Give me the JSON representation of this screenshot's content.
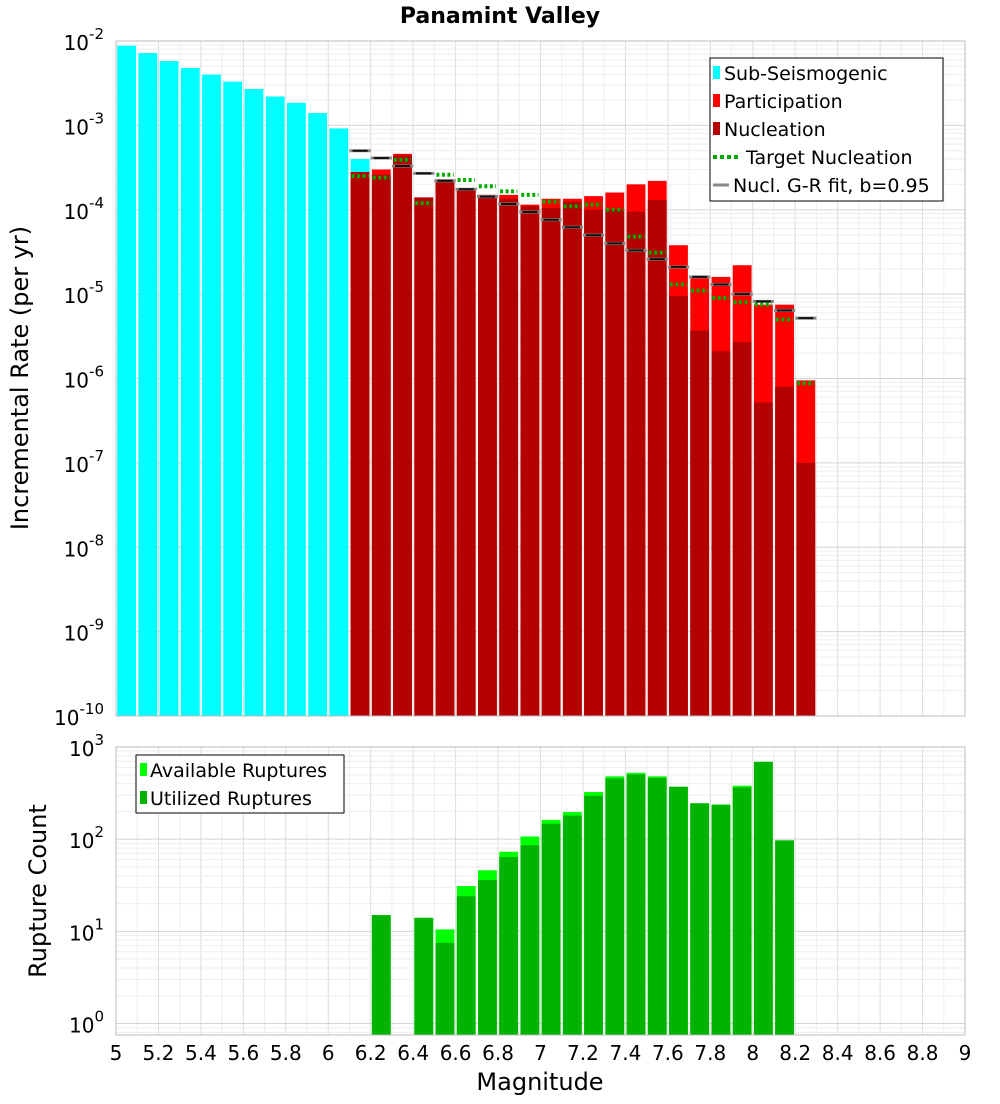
{
  "chart_data": [
    {
      "type": "bar",
      "id": "top",
      "title": "Panamint Valley",
      "ylabel": "Incremental Rate (per yr)",
      "yscale": "log",
      "ylim": [
        1e-10,
        0.01
      ],
      "xlim": [
        5,
        9
      ],
      "ytick_base": "10",
      "ytick_exponents": [
        "-10",
        "-9",
        "-8",
        "-7",
        "-6",
        "-5",
        "-4",
        "-3",
        "-2"
      ],
      "bin_width": 0.1,
      "series": [
        {
          "name": "Sub-Seismogenic",
          "color": "#00ffff",
          "x": [
            5.05,
            5.15,
            5.25,
            5.35,
            5.45,
            5.55,
            5.65,
            5.75,
            5.85,
            5.95,
            6.05,
            6.15
          ],
          "values": [
            0.0088,
            0.0072,
            0.0058,
            0.0048,
            0.004,
            0.0033,
            0.0027,
            0.0022,
            0.00185,
            0.0014,
            0.00092,
            0.0004
          ]
        },
        {
          "name": "Participation",
          "color": "#ff0000",
          "x": [
            6.15,
            6.25,
            6.35,
            6.45,
            6.55,
            6.65,
            6.75,
            6.85,
            6.95,
            7.05,
            7.15,
            7.25,
            7.35,
            7.45,
            7.55,
            7.65,
            7.75,
            7.85,
            7.95,
            8.05,
            8.15,
            8.25
          ],
          "values": [
            0.00028,
            0.0003,
            0.00046,
            0.00014,
            0.00023,
            0.00018,
            0.00015,
            0.00015,
            0.000115,
            0.000135,
            0.000135,
            0.000145,
            0.00016,
            0.0002,
            0.00022,
            3.8e-05,
            1.55e-05,
            1.6e-05,
            2.2e-05,
            7.5e-06,
            7.5e-06,
            9.5e-07
          ]
        },
        {
          "name": "Nucleation",
          "color": "#b30000",
          "x": [
            6.15,
            6.25,
            6.35,
            6.45,
            6.55,
            6.65,
            6.75,
            6.85,
            6.95,
            7.05,
            7.15,
            7.25,
            7.35,
            7.45,
            7.55,
            7.65,
            7.75,
            7.85,
            7.95,
            8.05,
            8.15,
            8.25
          ],
          "values": [
            0.00028,
            0.00026,
            0.00044,
            0.00014,
            0.00022,
            0.000175,
            0.00015,
            0.000135,
            0.00011,
            0.000105,
            0.000125,
            0.0001,
            0.0001,
            9.5e-05,
            0.00013,
            9.5e-06,
            3.7e-06,
            2.1e-06,
            2.7e-06,
            5.2e-07,
            8e-07,
            1e-07
          ]
        },
        {
          "name": "Target Nucleation",
          "color": "#00aa00",
          "x": [
            6.15,
            6.25,
            6.35,
            6.45,
            6.55,
            6.65,
            6.75,
            6.85,
            6.95,
            7.05,
            7.15,
            7.25,
            7.35,
            7.45,
            7.55,
            7.65,
            7.75,
            7.85,
            7.95,
            8.05,
            8.15,
            8.25
          ],
          "values": [
            0.00025,
            0.00024,
            0.00039,
            0.00012,
            0.00026,
            0.000225,
            0.00019,
            0.000165,
            0.00015,
            0.000125,
            0.00011,
            0.000115,
            0.0001,
            4.8e-05,
            3.1e-05,
            1.3e-05,
            1.1e-05,
            9e-06,
            8e-06,
            7.5e-06,
            5e-06,
            8.8e-07
          ]
        },
        {
          "name": "Nucl. G-R fit, b=0.95",
          "color": "#888888",
          "inner_color": "#111111",
          "x": [
            6.15,
            6.25,
            6.35,
            6.45,
            6.55,
            6.65,
            6.75,
            6.85,
            6.95,
            7.05,
            7.15,
            7.25,
            7.35,
            7.45,
            7.55,
            7.65,
            7.75,
            7.85,
            7.95,
            8.05,
            8.15,
            8.25
          ],
          "values": [
            0.0005,
            0.00041,
            0.00033,
            0.00027,
            0.00022,
            0.000175,
            0.000143,
            0.000117,
            9.4e-05,
            7.6e-05,
            6.2e-05,
            5e-05,
            4e-05,
            3.3e-05,
            2.6e-05,
            2.1e-05,
            1.6e-05,
            1.3e-05,
            1e-05,
            8.2e-06,
            6.4e-06,
            5.2e-06
          ]
        }
      ],
      "legend": {
        "position": "top-right",
        "entries": [
          "Sub-Seismogenic",
          "Participation",
          "Nucleation",
          "Target Nucleation",
          "Nucl. G-R fit, b=0.95"
        ]
      }
    },
    {
      "type": "bar",
      "id": "bottom",
      "xlabel": "Magnitude",
      "ylabel": "Rupture Count",
      "yscale": "log",
      "ylim": [
        0.75,
        1000
      ],
      "xlim": [
        5,
        9
      ],
      "ytick_base": "10",
      "ytick_exponents": [
        "0",
        "1",
        "2",
        "3"
      ],
      "xticks": [
        "5",
        "5.2",
        "5.4",
        "5.6",
        "5.8",
        "6",
        "6.2",
        "6.4",
        "6.6",
        "6.8",
        "7",
        "7.2",
        "7.4",
        "7.6",
        "7.8",
        "8",
        "8.2",
        "8.4",
        "8.6",
        "8.8",
        "9"
      ],
      "bin_width": 0.1,
      "series": [
        {
          "name": "Available Ruptures",
          "color": "#00ff00",
          "x": [
            6.25,
            6.45,
            6.55,
            6.65,
            6.75,
            6.85,
            6.95,
            7.05,
            7.15,
            7.25,
            7.35,
            7.45,
            7.55,
            7.65,
            7.75,
            7.85,
            7.95,
            8.05,
            8.15
          ],
          "values": [
            15,
            14,
            10.5,
            31,
            46,
            73,
            107,
            162,
            197,
            325,
            480,
            525,
            480,
            370,
            245,
            238,
            380,
            690,
            97
          ]
        },
        {
          "name": "Utilized Ruptures",
          "color": "#00b300",
          "x": [
            6.25,
            6.45,
            6.55,
            6.65,
            6.75,
            6.85,
            6.95,
            7.05,
            7.15,
            7.25,
            7.35,
            7.45,
            7.55,
            7.65,
            7.75,
            7.85,
            7.95,
            8.05,
            8.15
          ],
          "values": [
            15,
            14,
            7.5,
            24,
            36,
            64,
            86,
            147,
            180,
            295,
            455,
            505,
            460,
            370,
            245,
            235,
            365,
            690,
            97
          ]
        }
      ],
      "legend": {
        "position": "top-left",
        "entries": [
          "Available Ruptures",
          "Utilized Ruptures"
        ]
      }
    }
  ]
}
